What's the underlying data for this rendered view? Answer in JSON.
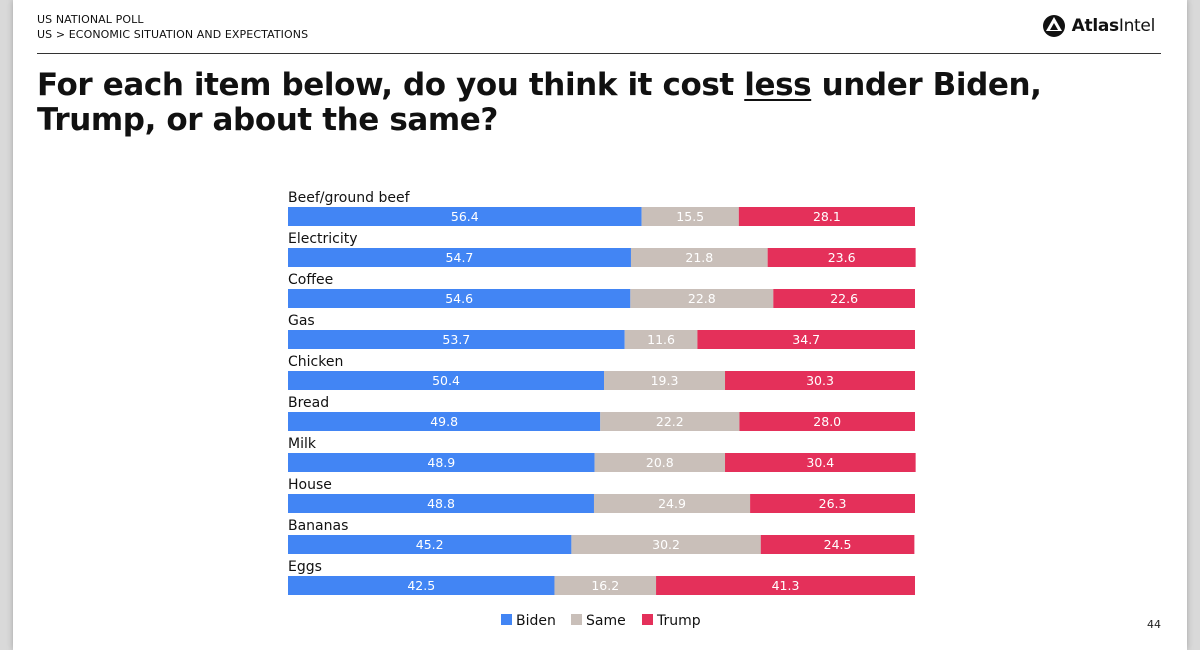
{
  "header": {
    "kicker_line1": "US NATIONAL POLL",
    "kicker_line2": "US > ECONOMIC SITUATION AND EXPECTATIONS",
    "logo_text_bold": "Atlas",
    "logo_text_regular": "Intel",
    "logo_icon": "atlasintel-logo-icon"
  },
  "headline": {
    "before": "For each item below, do you think it cost ",
    "emphasis": "less",
    "after": " under Biden, Trump, or about the same?"
  },
  "footer": {
    "page_number": "44"
  },
  "colors": {
    "biden": "#4285f4",
    "same": "#c9bfb9",
    "trump": "#e4305a"
  },
  "chart_data": {
    "type": "bar",
    "orientation": "horizontal",
    "stacked": true,
    "categories": [
      "Beef/ground beef",
      "Electricity",
      "Coffee",
      "Gas",
      "Chicken",
      "Bread",
      "Milk",
      "House",
      "Bananas",
      "Eggs"
    ],
    "series": [
      {
        "name": "Biden",
        "values": [
          56.4,
          54.7,
          54.6,
          53.7,
          50.4,
          49.8,
          48.9,
          48.8,
          45.2,
          42.5
        ]
      },
      {
        "name": "Same",
        "values": [
          15.5,
          21.8,
          22.8,
          11.6,
          19.3,
          22.2,
          20.8,
          24.9,
          30.2,
          16.2
        ]
      },
      {
        "name": "Trump",
        "values": [
          28.1,
          23.6,
          22.6,
          34.7,
          30.3,
          28.0,
          30.4,
          26.3,
          24.5,
          41.3
        ]
      }
    ],
    "xlim": [
      0,
      100
    ],
    "data_labels": true,
    "legend_position": "bottom",
    "grid": false
  }
}
